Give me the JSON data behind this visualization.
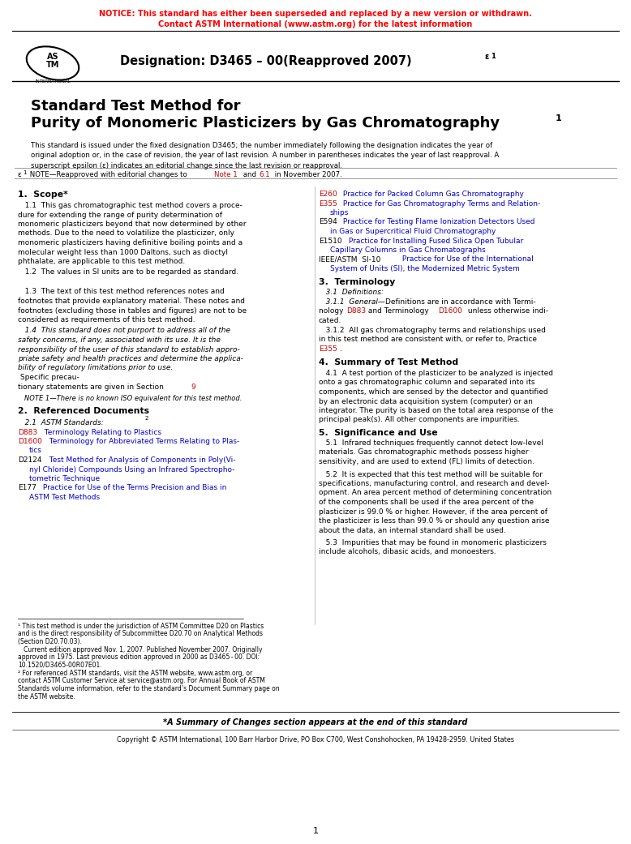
{
  "notice_line1": "NOTICE: This standard has either been superseded and replaced by a new version or withdrawn.",
  "notice_line2": "Contact ASTM International (www.astm.org) for the latest information",
  "notice_color": "#FF0000",
  "bg_color": "#FFFFFF",
  "text_color": "#000000",
  "link_color_red": "#CC0000",
  "link_color_blue": "#0000CC",
  "copyright_text": "Copyright © ASTM International, 100 Barr Harbor Drive, PO Box C700, West Conshohocken, PA 19428-2959. United States"
}
